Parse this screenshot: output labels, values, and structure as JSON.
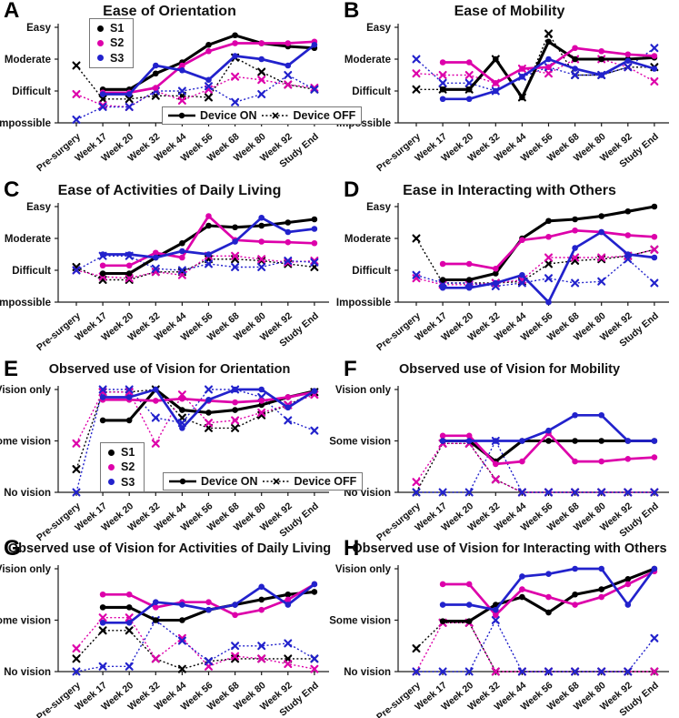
{
  "figure": {
    "background": "#ffffff",
    "text_color": "#111111",
    "colors": {
      "S1": "#000000",
      "S2": "#dd00aa",
      "S3": "#2222cc"
    },
    "legend": {
      "s1": "S1",
      "s2": "S2",
      "s3": "S3",
      "on": "Device ON",
      "off": "Device OFF"
    },
    "x_labels": [
      "Pre-surgery",
      "Week 17",
      "Week 20",
      "Week 32",
      "Week 44",
      "Week 56",
      "Week 68",
      "Week 80",
      "Week 92",
      "Study End"
    ]
  },
  "chart_data": [
    {
      "panel": "A",
      "type": "line",
      "title": "Ease of Orientation",
      "categories": [
        "Pre-surgery",
        "Week 17",
        "Week 20",
        "Week 32",
        "Week 44",
        "Week 56",
        "Week 68",
        "Week 80",
        "Week 92",
        "Study End"
      ],
      "ylim": [
        0,
        3
      ],
      "y_ticks": [
        {
          "label": "Easy",
          "value": 3
        },
        {
          "label": "Moderate",
          "value": 2
        },
        {
          "label": "Difficult",
          "value": 1
        },
        {
          "label": "Impossible",
          "value": 0
        }
      ],
      "series": [
        {
          "name": "S1",
          "device": "OFF",
          "values": [
            1.8,
            0.75,
            0.75,
            0.85,
            0.85,
            0.8,
            2.05,
            1.6,
            1.2,
            1.05
          ]
        },
        {
          "name": "S2",
          "device": "OFF",
          "values": [
            0.9,
            0.55,
            0.5,
            1.0,
            0.7,
            1.05,
            1.45,
            1.35,
            1.2,
            1.1
          ]
        },
        {
          "name": "S3",
          "device": "OFF",
          "values": [
            0.1,
            0.5,
            0.5,
            1.0,
            1.0,
            1.15,
            0.65,
            0.9,
            1.5,
            1.05
          ]
        },
        {
          "name": "S1",
          "device": "ON",
          "values": [
            null,
            1.05,
            1.05,
            1.55,
            1.9,
            2.45,
            2.75,
            2.5,
            2.4,
            2.35
          ]
        },
        {
          "name": "S2",
          "device": "ON",
          "values": [
            null,
            0.95,
            0.95,
            1.1,
            1.8,
            2.25,
            2.5,
            2.5,
            2.5,
            2.55
          ]
        },
        {
          "name": "S3",
          "device": "ON",
          "values": [
            null,
            0.9,
            0.9,
            1.8,
            1.65,
            1.35,
            2.1,
            2.0,
            1.8,
            2.45
          ]
        }
      ]
    },
    {
      "panel": "B",
      "type": "line",
      "title": "Ease of Mobility",
      "categories": [
        "Pre-surgery",
        "Week 17",
        "Week 20",
        "Week 32",
        "Week 44",
        "Week 56",
        "Week 68",
        "Week 80",
        "Week 92",
        "Study End"
      ],
      "ylim": [
        0,
        3
      ],
      "y_ticks": [
        {
          "label": "Easy",
          "value": 3
        },
        {
          "label": "Moderate",
          "value": 2
        },
        {
          "label": "Difficult",
          "value": 1
        },
        {
          "label": "Impossible",
          "value": 0
        }
      ],
      "series": [
        {
          "name": "S1",
          "device": "OFF",
          "values": [
            1.05,
            1.05,
            1.05,
            2.0,
            0.8,
            2.8,
            1.5,
            1.5,
            1.75,
            1.75
          ]
        },
        {
          "name": "S2",
          "device": "OFF",
          "values": [
            1.55,
            1.5,
            1.5,
            1.25,
            1.7,
            1.55,
            2.0,
            2.0,
            1.75,
            1.3
          ]
        },
        {
          "name": "S3",
          "device": "OFF",
          "values": [
            2.0,
            1.25,
            1.25,
            1.0,
            1.45,
            1.75,
            1.5,
            1.5,
            1.75,
            2.35
          ]
        },
        {
          "name": "S1",
          "device": "ON",
          "values": [
            null,
            1.05,
            1.05,
            2.0,
            0.8,
            2.55,
            2.0,
            2.0,
            2.0,
            2.05
          ]
        },
        {
          "name": "S2",
          "device": "ON",
          "values": [
            null,
            1.9,
            1.9,
            1.25,
            1.7,
            1.75,
            2.35,
            2.25,
            2.15,
            2.1
          ]
        },
        {
          "name": "S3",
          "device": "ON",
          "values": [
            null,
            0.75,
            0.75,
            1.0,
            1.45,
            2.0,
            1.7,
            1.5,
            1.95,
            1.7
          ]
        }
      ]
    },
    {
      "panel": "C",
      "type": "line",
      "title": "Ease of Activities of Daily Living",
      "categories": [
        "Pre-surgery",
        "Week 17",
        "Week 20",
        "Week 32",
        "Week 44",
        "Week 56",
        "Week 68",
        "Week 80",
        "Week 92",
        "Study End"
      ],
      "ylim": [
        0,
        3
      ],
      "y_ticks": [
        {
          "label": "Easy",
          "value": 3
        },
        {
          "label": "Moderate",
          "value": 2
        },
        {
          "label": "Difficult",
          "value": 1
        },
        {
          "label": "Impossible",
          "value": 0
        }
      ],
      "series": [
        {
          "name": "S1",
          "device": "OFF",
          "values": [
            1.1,
            0.7,
            0.7,
            0.95,
            0.95,
            1.35,
            1.35,
            1.3,
            1.2,
            1.1
          ]
        },
        {
          "name": "S2",
          "device": "OFF",
          "values": [
            1.0,
            0.8,
            0.75,
            0.95,
            0.85,
            1.45,
            1.45,
            1.35,
            1.25,
            1.3
          ]
        },
        {
          "name": "S3",
          "device": "OFF",
          "values": [
            1.0,
            1.45,
            1.45,
            1.05,
            1.0,
            1.2,
            1.1,
            1.1,
            1.3,
            1.25
          ]
        },
        {
          "name": "S1",
          "device": "ON",
          "values": [
            null,
            0.9,
            0.9,
            1.4,
            1.85,
            2.4,
            2.35,
            2.4,
            2.5,
            2.6
          ]
        },
        {
          "name": "S2",
          "device": "ON",
          "values": [
            null,
            1.15,
            1.15,
            1.55,
            1.4,
            2.7,
            1.95,
            1.9,
            1.88,
            1.85
          ]
        },
        {
          "name": "S3",
          "device": "ON",
          "values": [
            null,
            1.5,
            1.5,
            1.4,
            1.6,
            1.5,
            1.9,
            2.65,
            2.2,
            2.3
          ]
        }
      ]
    },
    {
      "panel": "D",
      "type": "line",
      "title": "Ease in Interacting with Others",
      "categories": [
        "Pre-surgery",
        "Week 17",
        "Week 20",
        "Week 32",
        "Week 44",
        "Week 56",
        "Week 68",
        "Week 80",
        "Week 92",
        "Study End"
      ],
      "ylim": [
        0,
        3
      ],
      "y_ticks": [
        {
          "label": "Easy",
          "value": 3
        },
        {
          "label": "Moderate",
          "value": 2
        },
        {
          "label": "Difficult",
          "value": 1
        },
        {
          "label": "Impossible",
          "value": 0
        }
      ],
      "series": [
        {
          "name": "S1",
          "device": "OFF",
          "values": [
            2.0,
            0.6,
            0.6,
            0.6,
            0.65,
            1.2,
            1.3,
            1.35,
            1.45,
            1.65
          ]
        },
        {
          "name": "S2",
          "device": "OFF",
          "values": [
            0.75,
            0.55,
            0.55,
            0.6,
            0.7,
            1.4,
            1.4,
            1.4,
            1.45,
            1.65
          ]
        },
        {
          "name": "S3",
          "device": "OFF",
          "values": [
            0.85,
            0.6,
            0.6,
            0.5,
            0.6,
            0.75,
            0.6,
            0.65,
            1.35,
            0.6
          ]
        },
        {
          "name": "S1",
          "device": "ON",
          "values": [
            null,
            0.7,
            0.7,
            0.9,
            2.0,
            2.55,
            2.6,
            2.7,
            2.85,
            3.0
          ]
        },
        {
          "name": "S2",
          "device": "ON",
          "values": [
            null,
            1.2,
            1.2,
            1.05,
            1.95,
            2.05,
            2.25,
            2.2,
            2.1,
            2.05
          ]
        },
        {
          "name": "S3",
          "device": "ON",
          "values": [
            null,
            0.45,
            0.45,
            0.6,
            0.85,
            0.0,
            1.7,
            2.2,
            1.5,
            1.4
          ]
        }
      ]
    },
    {
      "panel": "E",
      "type": "line",
      "title": "Observed use of Vision for Orientation",
      "categories": [
        "Pre-surgery",
        "Week 17",
        "Week 20",
        "Week 32",
        "Week 44",
        "Week 56",
        "Week 68",
        "Week 80",
        "Week 92",
        "Study End"
      ],
      "ylim": [
        0,
        2
      ],
      "y_ticks": [
        {
          "label": "Vision only",
          "value": 2
        },
        {
          "label": "Some vision",
          "value": 1
        },
        {
          "label": "No vision",
          "value": 0
        }
      ],
      "series": [
        {
          "name": "S1",
          "device": "OFF",
          "values": [
            0.45,
            1.95,
            1.95,
            2.0,
            1.45,
            1.25,
            1.25,
            1.5,
            1.7,
            1.95
          ]
        },
        {
          "name": "S2",
          "device": "OFF",
          "values": [
            0.95,
            1.95,
            1.95,
            0.95,
            1.9,
            1.35,
            1.4,
            1.55,
            1.7,
            1.9
          ]
        },
        {
          "name": "S3",
          "device": "OFF",
          "values": [
            0.0,
            2.0,
            2.0,
            1.45,
            1.35,
            2.0,
            2.0,
            1.85,
            1.4,
            1.2
          ]
        },
        {
          "name": "S1",
          "device": "ON",
          "values": [
            null,
            1.4,
            1.4,
            2.0,
            1.6,
            1.55,
            1.6,
            1.7,
            1.85,
            1.97
          ]
        },
        {
          "name": "S2",
          "device": "ON",
          "values": [
            null,
            1.8,
            1.8,
            1.78,
            1.82,
            1.78,
            1.75,
            1.78,
            1.85,
            1.95
          ]
        },
        {
          "name": "S3",
          "device": "ON",
          "values": [
            null,
            1.85,
            1.85,
            2.0,
            1.25,
            1.8,
            2.0,
            2.0,
            1.65,
            1.97
          ]
        }
      ]
    },
    {
      "panel": "F",
      "type": "line",
      "title": "Observed use of Vision for Mobility",
      "categories": [
        "Pre-surgery",
        "Week 17",
        "Week 20",
        "Week 32",
        "Week 44",
        "Week 56",
        "Week 68",
        "Week 80",
        "Week 92",
        "Study End"
      ],
      "ylim": [
        0,
        2
      ],
      "y_ticks": [
        {
          "label": "Vision only",
          "value": 2
        },
        {
          "label": "Some vision",
          "value": 1
        },
        {
          "label": "No vision",
          "value": 0
        }
      ],
      "series": [
        {
          "name": "S1",
          "device": "OFF",
          "values": [
            0.0,
            0.95,
            0.95,
            0.25,
            0.0,
            0.0,
            0.0,
            0.0,
            0.0,
            0.0
          ]
        },
        {
          "name": "S2",
          "device": "OFF",
          "values": [
            0.2,
            0.95,
            0.95,
            0.25,
            0.0,
            0.0,
            0.0,
            0.0,
            0.0,
            0.0
          ]
        },
        {
          "name": "S3",
          "device": "OFF",
          "values": [
            0.0,
            0.0,
            0.0,
            1.0,
            0.0,
            0.0,
            0.0,
            0.0,
            0.0,
            0.0
          ]
        },
        {
          "name": "S1",
          "device": "ON",
          "values": [
            null,
            1.0,
            1.0,
            0.6,
            1.0,
            1.0,
            1.0,
            1.0,
            1.0,
            1.0
          ]
        },
        {
          "name": "S2",
          "device": "ON",
          "values": [
            null,
            1.1,
            1.1,
            0.55,
            0.6,
            1.15,
            0.6,
            0.6,
            0.65,
            0.68
          ]
        },
        {
          "name": "S3",
          "device": "ON",
          "values": [
            null,
            1.0,
            1.0,
            1.0,
            1.0,
            1.2,
            1.5,
            1.5,
            1.0,
            1.0
          ]
        }
      ]
    },
    {
      "panel": "G",
      "type": "line",
      "title": "Observed use of Vision for Activities of Daily Living",
      "categories": [
        "Pre-surgery",
        "Week 17",
        "Week 20",
        "Week 32",
        "Week 44",
        "Week 56",
        "Week 68",
        "Week 80",
        "Week 92",
        "Study End"
      ],
      "ylim": [
        0,
        2
      ],
      "y_ticks": [
        {
          "label": "Vision only",
          "value": 2
        },
        {
          "label": "Some vision",
          "value": 1
        },
        {
          "label": "No vision",
          "value": 0
        }
      ],
      "series": [
        {
          "name": "S1",
          "device": "OFF",
          "values": [
            0.25,
            0.8,
            0.8,
            0.25,
            0.05,
            0.2,
            0.25,
            0.25,
            0.25,
            0.25
          ]
        },
        {
          "name": "S2",
          "device": "OFF",
          "values": [
            0.45,
            1.05,
            1.05,
            0.25,
            0.65,
            0.1,
            0.3,
            0.25,
            0.15,
            0.05
          ]
        },
        {
          "name": "S3",
          "device": "OFF",
          "values": [
            0.0,
            0.1,
            0.1,
            1.0,
            0.6,
            0.2,
            0.5,
            0.5,
            0.55,
            0.25
          ]
        },
        {
          "name": "S1",
          "device": "ON",
          "values": [
            null,
            1.25,
            1.25,
            1.0,
            1.0,
            1.2,
            1.3,
            1.4,
            1.5,
            1.55
          ]
        },
        {
          "name": "S2",
          "device": "ON",
          "values": [
            null,
            1.5,
            1.5,
            1.25,
            1.35,
            1.35,
            1.1,
            1.2,
            1.4,
            1.7
          ]
        },
        {
          "name": "S3",
          "device": "ON",
          "values": [
            null,
            0.95,
            0.95,
            1.35,
            1.3,
            1.2,
            1.3,
            1.65,
            1.3,
            1.7
          ]
        }
      ]
    },
    {
      "panel": "H",
      "type": "line",
      "title": "Observed use of Vision for Interacting with Others",
      "categories": [
        "Pre-surgery",
        "Week 17",
        "Week 20",
        "Week 32",
        "Week 44",
        "Week 56",
        "Week 68",
        "Week 80",
        "Week 92",
        "Study End"
      ],
      "ylim": [
        0,
        2
      ],
      "y_ticks": [
        {
          "label": "Vision only",
          "value": 2
        },
        {
          "label": "Some vision",
          "value": 1
        },
        {
          "label": "No vision",
          "value": 0
        }
      ],
      "series": [
        {
          "name": "S1",
          "device": "OFF",
          "values": [
            0.45,
            0.95,
            0.95,
            0.0,
            0.0,
            0.0,
            0.0,
            0.0,
            0.0,
            0.0
          ]
        },
        {
          "name": "S2",
          "device": "OFF",
          "values": [
            0.0,
            0.95,
            0.95,
            0.0,
            0.0,
            0.0,
            0.0,
            0.0,
            0.0,
            0.0
          ]
        },
        {
          "name": "S3",
          "device": "OFF",
          "values": [
            0.0,
            0.0,
            0.0,
            1.0,
            0.0,
            0.0,
            0.0,
            0.0,
            0.0,
            0.65
          ]
        },
        {
          "name": "S1",
          "device": "ON",
          "values": [
            null,
            0.98,
            0.98,
            1.3,
            1.45,
            1.15,
            1.5,
            1.6,
            1.8,
            2.0
          ]
        },
        {
          "name": "S2",
          "device": "ON",
          "values": [
            null,
            1.7,
            1.7,
            1.1,
            1.6,
            1.45,
            1.3,
            1.45,
            1.7,
            1.95
          ]
        },
        {
          "name": "S3",
          "device": "ON",
          "values": [
            null,
            1.3,
            1.3,
            1.2,
            1.85,
            1.9,
            2.0,
            2.0,
            1.3,
            2.0
          ]
        }
      ]
    }
  ]
}
